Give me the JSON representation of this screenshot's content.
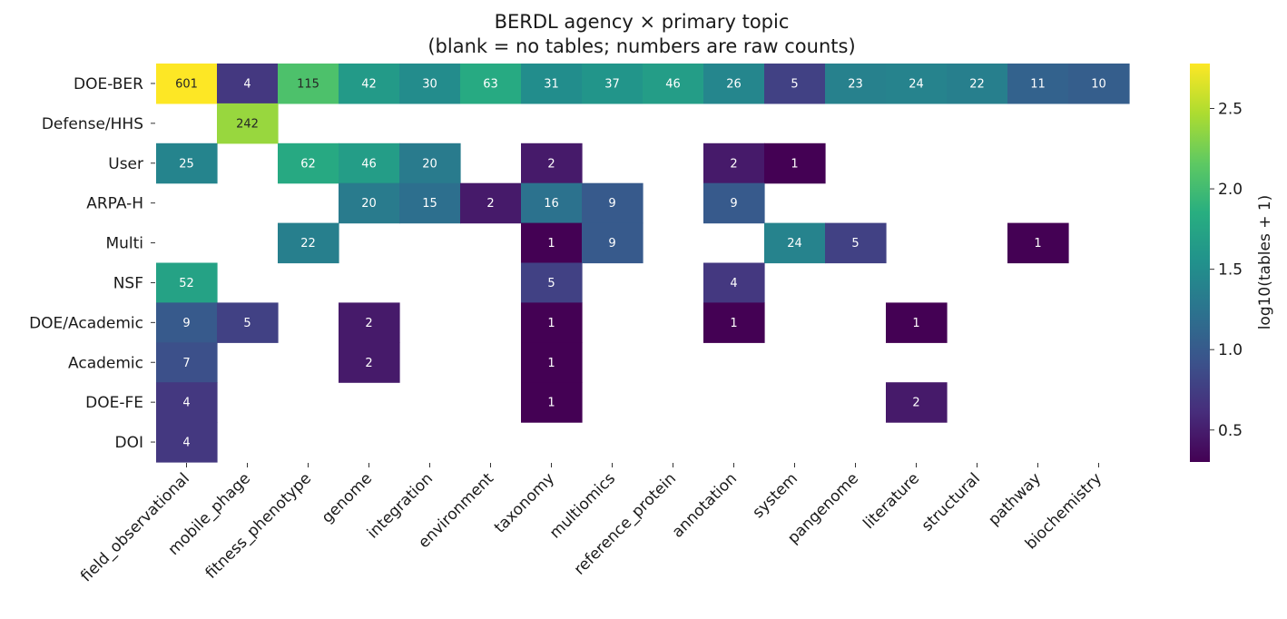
{
  "chart_data": {
    "type": "heatmap",
    "title": "BERDL agency × primary topic",
    "subtitle": "(blank = no tables; numbers are raw counts)",
    "rows": [
      "DOE-BER",
      "Defense/HHS",
      "User",
      "ARPA-H",
      "Multi",
      "NSF",
      "DOE/Academic",
      "Academic",
      "DOE-FE",
      "DOI"
    ],
    "columns": [
      "field_observational",
      "mobile_phage",
      "fitness_phenotype",
      "genome",
      "integration",
      "environment",
      "taxonomy",
      "multiomics",
      "reference_protein",
      "annotation",
      "system",
      "pangenome",
      "literature",
      "structural",
      "pathway",
      "biochemistry"
    ],
    "values": [
      [
        601,
        4,
        115,
        42,
        30,
        63,
        31,
        37,
        46,
        26,
        5,
        23,
        24,
        22,
        11,
        10
      ],
      [
        null,
        242,
        null,
        null,
        null,
        null,
        null,
        null,
        null,
        null,
        null,
        null,
        null,
        null,
        null,
        null
      ],
      [
        25,
        null,
        62,
        46,
        20,
        null,
        2,
        null,
        null,
        2,
        1,
        null,
        null,
        null,
        null,
        null
      ],
      [
        null,
        null,
        null,
        20,
        15,
        2,
        16,
        9,
        null,
        9,
        null,
        null,
        null,
        null,
        null,
        null
      ],
      [
        null,
        null,
        22,
        null,
        null,
        null,
        1,
        9,
        null,
        null,
        24,
        5,
        null,
        null,
        1,
        null
      ],
      [
        52,
        null,
        null,
        null,
        null,
        null,
        5,
        null,
        null,
        4,
        null,
        null,
        null,
        null,
        null,
        null
      ],
      [
        9,
        5,
        null,
        2,
        null,
        null,
        1,
        null,
        null,
        1,
        null,
        null,
        1,
        null,
        null,
        null
      ],
      [
        7,
        null,
        null,
        2,
        null,
        null,
        1,
        null,
        null,
        null,
        null,
        null,
        null,
        null,
        null,
        null
      ],
      [
        4,
        null,
        null,
        null,
        null,
        null,
        1,
        null,
        null,
        null,
        null,
        null,
        2,
        null,
        null,
        null
      ],
      [
        4,
        null,
        null,
        null,
        null,
        null,
        null,
        null,
        null,
        null,
        null,
        null,
        null,
        null,
        null,
        null
      ]
    ],
    "color_transform": "log10(count + 1)",
    "colormap": "viridis",
    "colorbar": {
      "label": "log10(tables + 1)",
      "range": [
        0.30103,
        2.77959
      ],
      "ticks": [
        "0.5",
        "1.0",
        "1.5",
        "2.0",
        "2.5"
      ],
      "tick_values": [
        0.5,
        1.0,
        1.5,
        2.0,
        2.5
      ]
    },
    "grid": false,
    "legend": "colorbar-right"
  }
}
